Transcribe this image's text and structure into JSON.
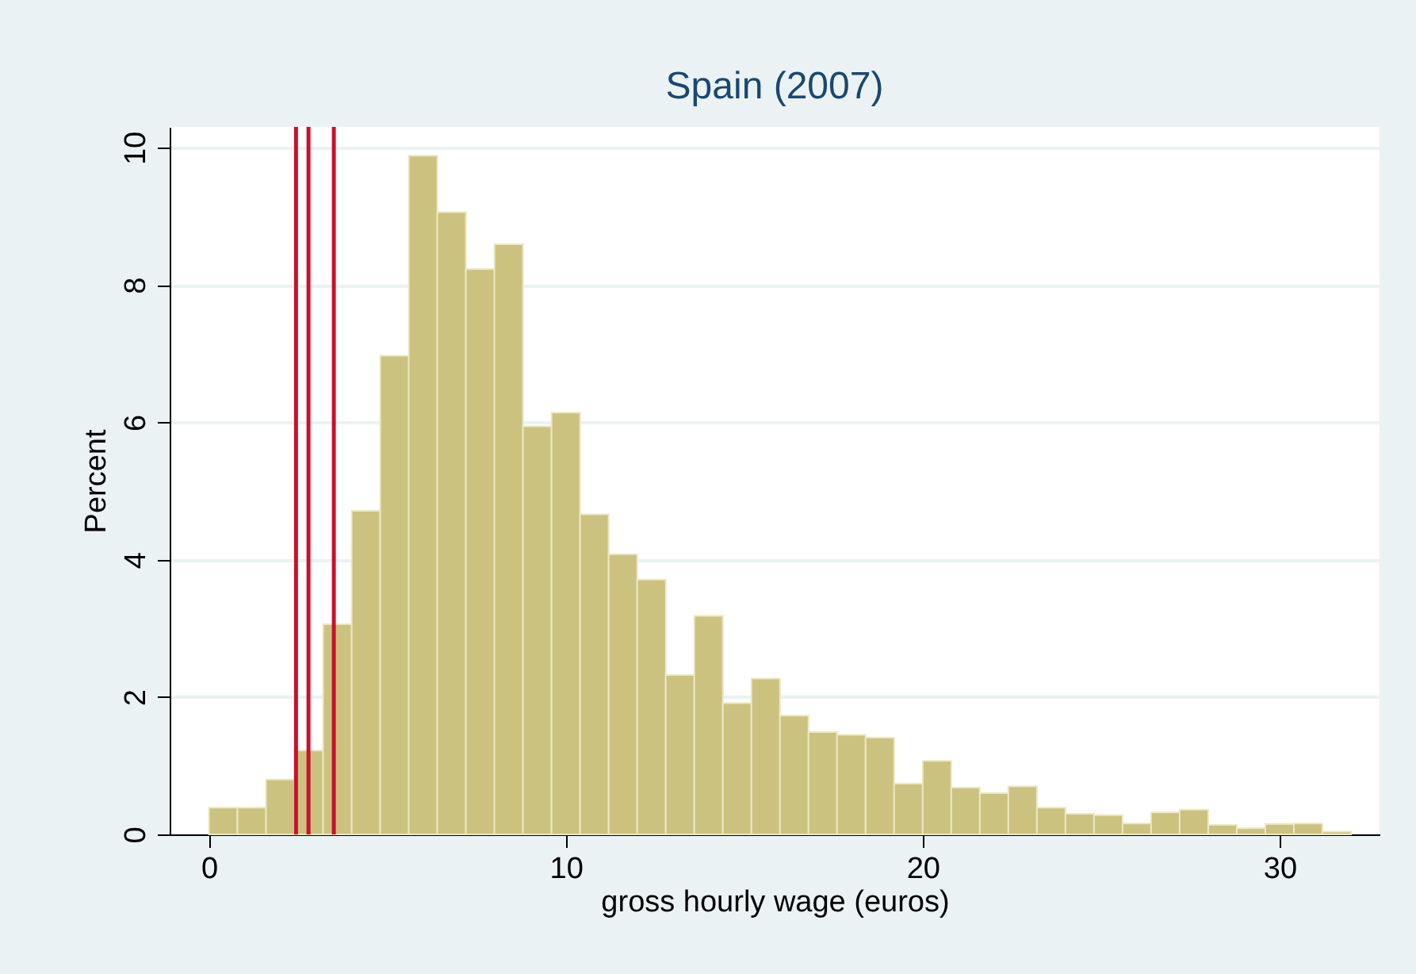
{
  "chart_data": {
    "type": "histogram",
    "title": "Spain (2007)",
    "xlabel": "gross hourly wage (euros)",
    "ylabel": "Percent",
    "bins": [
      0,
      0.8,
      1.6,
      2.4,
      3.2,
      4,
      4.8,
      5.6,
      6.4,
      7.2,
      8,
      8.8,
      9.6,
      10.4,
      11.2,
      12,
      12.8,
      13.6,
      14.4,
      15.2,
      16,
      16.8,
      17.6,
      18.4,
      19.2,
      20,
      20.8,
      21.6,
      22.4,
      23.2,
      24,
      24.8,
      25.6,
      26.4,
      27.2,
      28,
      28.8,
      29.6,
      30.4,
      31.2,
      32
    ],
    "values": [
      0.39,
      0.39,
      0.8,
      1.22,
      3.06,
      4.71,
      6.97,
      9.88,
      9.06,
      8.23,
      8.59,
      5.94,
      6.14,
      4.66,
      4.08,
      3.71,
      2.32,
      3.18,
      1.91,
      2.27,
      1.73,
      1.49,
      1.45,
      1.41,
      0.74,
      1.07,
      0.68,
      0.6,
      0.7,
      0.39,
      0.3,
      0.28,
      0.16,
      0.32,
      0.36,
      0.14,
      0.09,
      0.15,
      0.16,
      0.04
    ],
    "color": "#cbc27f",
    "xlim": [
      -1.1,
      32.8
    ],
    "ylim": [
      0,
      10.3
    ],
    "xticks": [
      0,
      10,
      20,
      30
    ],
    "yticks": [
      0,
      2,
      4,
      6,
      8,
      10
    ],
    "grid": "y",
    "ref_lines": [
      {
        "axis": "x",
        "value": 2.44,
        "color": "#c8102e"
      },
      {
        "axis": "x",
        "value": 2.79,
        "color": "#c8102e"
      },
      {
        "axis": "x",
        "value": 3.5,
        "color": "#c8102e"
      }
    ]
  }
}
